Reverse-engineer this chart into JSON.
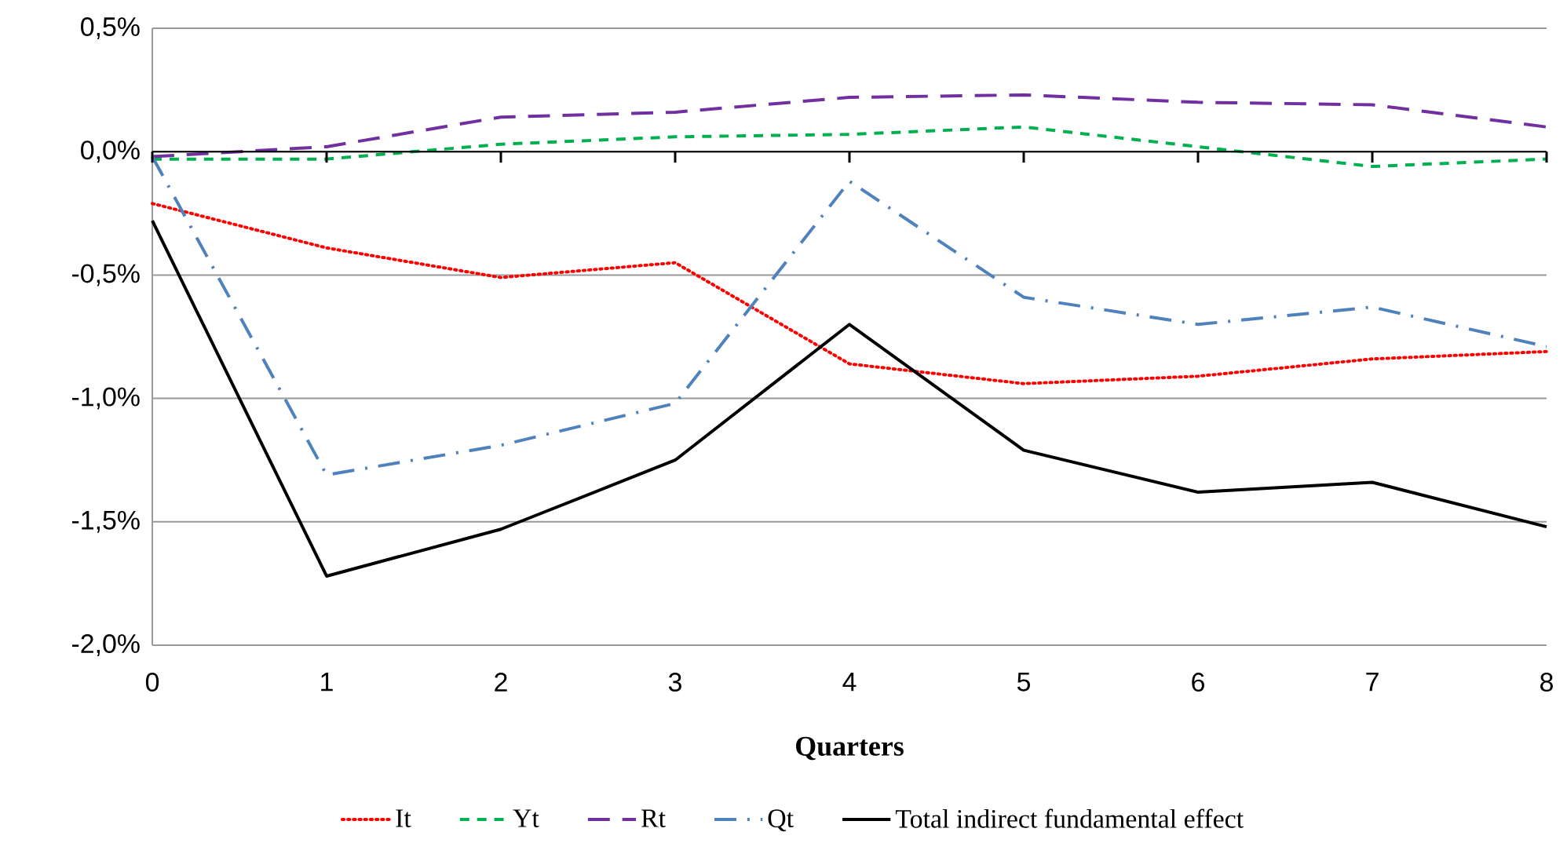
{
  "chart_data": {
    "type": "line",
    "xlabel": "Quarters",
    "x": [
      0,
      1,
      2,
      3,
      4,
      5,
      6,
      7,
      8
    ],
    "xlim": [
      0,
      8
    ],
    "xticks": [
      0,
      1,
      2,
      3,
      4,
      5,
      6,
      7,
      8
    ],
    "ylim": [
      -2.0,
      0.5
    ],
    "yticks": [
      {
        "value": -2.0,
        "label": "-2,0%"
      },
      {
        "value": -1.5,
        "label": "-1,5%"
      },
      {
        "value": -1.0,
        "label": "-1,0%"
      },
      {
        "value": -0.5,
        "label": "-0,5%"
      },
      {
        "value": 0.0,
        "label": "0,0%"
      },
      {
        "value": 0.5,
        "label": "0,5%"
      }
    ],
    "grid": "y",
    "legend": "bottom",
    "marker": "none",
    "series": [
      {
        "name": "It",
        "color": "#ff0000",
        "line_style": "dotted",
        "values": [
          -0.21,
          -0.39,
          -0.51,
          -0.45,
          -0.86,
          -0.94,
          -0.91,
          -0.84,
          -0.81
        ]
      },
      {
        "name": "Yt",
        "color": "#00b050",
        "line_style": "dashed",
        "values": [
          -0.03,
          -0.03,
          0.03,
          0.06,
          0.07,
          0.1,
          0.02,
          -0.06,
          -0.03
        ]
      },
      {
        "name": "Rt",
        "color": "#7030a0",
        "line_style": "longdashed",
        "values": [
          -0.02,
          0.02,
          0.14,
          0.16,
          0.22,
          0.23,
          0.2,
          0.19,
          0.1
        ]
      },
      {
        "name": "Qt",
        "color": "#4f81bd",
        "line_style": "dashdot",
        "values": [
          -0.02,
          -1.31,
          -1.19,
          -1.02,
          -0.12,
          -0.59,
          -0.7,
          -0.63,
          -0.79
        ]
      },
      {
        "name": "Total indirect fundamental effect",
        "color": "#000000",
        "line_style": "solid",
        "values": [
          -0.28,
          -1.72,
          -1.53,
          -1.25,
          -0.7,
          -1.21,
          -1.38,
          -1.34,
          -1.52
        ]
      }
    ]
  }
}
